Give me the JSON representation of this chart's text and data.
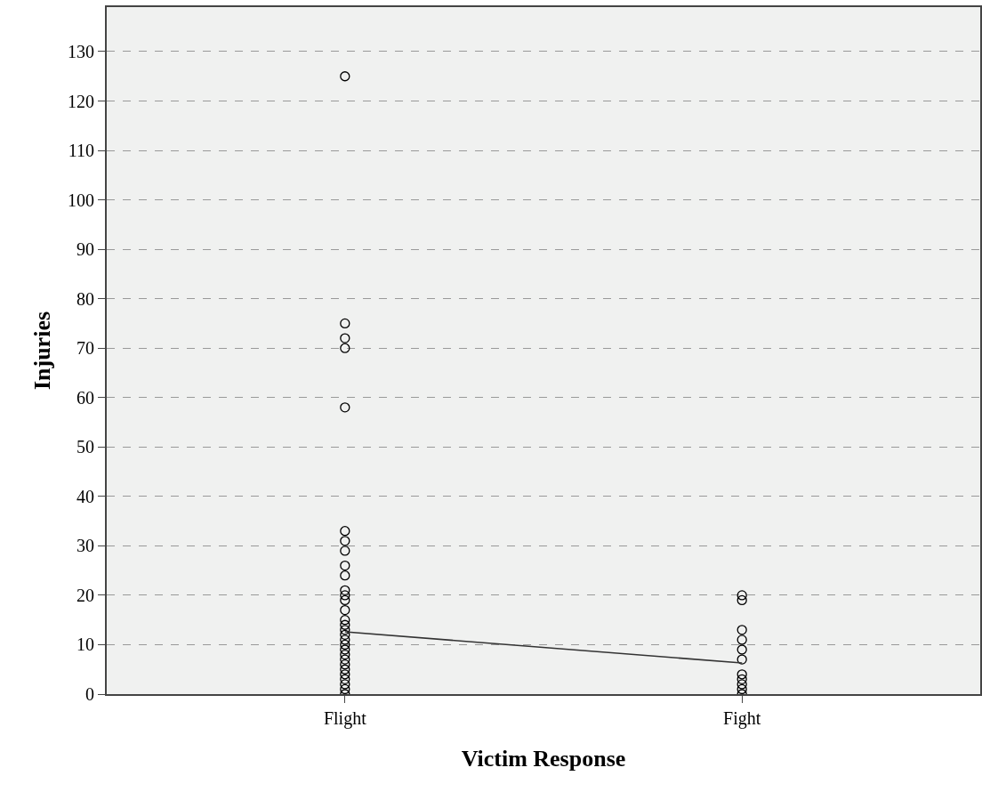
{
  "chart_data": {
    "type": "scatter",
    "xlabel": "Victim Response",
    "ylabel": "Injuries",
    "categories": [
      "Flight",
      "Fight"
    ],
    "series": [
      {
        "marker": "circle",
        "color": "#000000",
        "x": [
          "Flight",
          "Flight",
          "Flight",
          "Flight",
          "Flight",
          "Flight",
          "Flight",
          "Flight",
          "Flight",
          "Flight",
          "Flight",
          "Flight",
          "Flight",
          "Flight",
          "Flight",
          "Flight",
          "Flight",
          "Flight",
          "Flight",
          "Flight",
          "Flight",
          "Flight",
          "Flight",
          "Flight",
          "Flight",
          "Flight",
          "Flight",
          "Flight",
          "Flight",
          "Flight",
          "Fight",
          "Fight",
          "Fight",
          "Fight",
          "Fight",
          "Fight",
          "Fight",
          "Fight",
          "Fight",
          "Fight",
          "Fight"
        ],
        "values": [
          125,
          75,
          72,
          70,
          58,
          33,
          31,
          29,
          26,
          24,
          21,
          20,
          19,
          17,
          15,
          14,
          13,
          12,
          11,
          10,
          9,
          8,
          7,
          6,
          5,
          4,
          3,
          2,
          1,
          0,
          20,
          19,
          13,
          11,
          9,
          7,
          4,
          3,
          2,
          1,
          0
        ]
      },
      {
        "type": "line",
        "color": "#333333",
        "x": [
          "Flight",
          "Fight"
        ],
        "values": [
          12.6,
          6.3
        ]
      }
    ],
    "ylim": [
      0,
      139
    ],
    "yticks": [
      0,
      10,
      20,
      30,
      40,
      50,
      60,
      70,
      80,
      90,
      100,
      110,
      120,
      130
    ],
    "grid": "y",
    "line_style": "solid"
  }
}
